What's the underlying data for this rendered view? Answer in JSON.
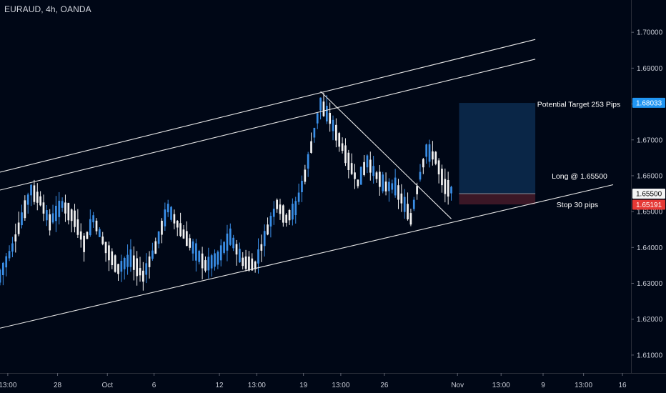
{
  "symbol_title": "EURAUD, 4h, OANDA",
  "colors": {
    "background": "#000716",
    "up_candle": "#3a8fe8",
    "down_candle": "#f2f2f2",
    "trendline": "#e6e6e6",
    "target_zone": "#0a2647",
    "stop_zone": "#3b1726",
    "axis_text": "#c8ccd6",
    "current_price_tag": "#2196f3",
    "stop_price_tag": "#e53935"
  },
  "chart_data": {
    "type": "candlestick",
    "title": "EURAUD, 4h, OANDA",
    "y_axis": {
      "position": "right",
      "ylim": [
        1.605,
        1.709
      ],
      "ticks": [
        "1.70000",
        "1.69000",
        "1.68000",
        "1.67000",
        "1.66000",
        "1.65000",
        "1.64000",
        "1.63000",
        "1.62000",
        "1.61000"
      ]
    },
    "x_axis": {
      "ticks": [
        "13:00",
        "28",
        "Oct",
        "6",
        "12",
        "13:00",
        "19",
        "13:00",
        "26",
        "Nov",
        "13:00",
        "9",
        "13:00",
        "16"
      ]
    },
    "grid": false,
    "price_tags": [
      {
        "label": "1.68033",
        "value": 1.68033,
        "color": "#2196f3"
      },
      {
        "label": "1.65500",
        "value": 1.655,
        "color": "#f5f5f5"
      },
      {
        "label": "1.65191",
        "value": 1.65191,
        "color": "#e53935"
      }
    ],
    "annotations": [
      {
        "text": "Potential Target 253 Pips",
        "value": 1.68
      },
      {
        "text": "Long @ 1.65500",
        "value": 1.66
      },
      {
        "text": "Stop 30 pips",
        "value": 1.652
      }
    ],
    "position_tool": {
      "entry": 1.655,
      "target": 1.6803,
      "stop": 1.652
    },
    "price_path_points": [
      {
        "x": 0,
        "y": 1.632
      },
      {
        "x": 4,
        "y": 1.64
      },
      {
        "x": 7,
        "y": 1.648
      },
      {
        "x": 10,
        "y": 1.656
      },
      {
        "x": 13,
        "y": 1.653
      },
      {
        "x": 16,
        "y": 1.647
      },
      {
        "x": 20,
        "y": 1.652
      },
      {
        "x": 24,
        "y": 1.648
      },
      {
        "x": 27,
        "y": 1.641
      },
      {
        "x": 30,
        "y": 1.648
      },
      {
        "x": 34,
        "y": 1.64
      },
      {
        "x": 38,
        "y": 1.634
      },
      {
        "x": 42,
        "y": 1.637
      },
      {
        "x": 46,
        "y": 1.632
      },
      {
        "x": 50,
        "y": 1.64
      },
      {
        "x": 54,
        "y": 1.651
      },
      {
        "x": 58,
        "y": 1.645
      },
      {
        "x": 62,
        "y": 1.64
      },
      {
        "x": 66,
        "y": 1.635
      },
      {
        "x": 70,
        "y": 1.637
      },
      {
        "x": 74,
        "y": 1.643
      },
      {
        "x": 78,
        "y": 1.636
      },
      {
        "x": 82,
        "y": 1.635
      },
      {
        "x": 86,
        "y": 1.645
      },
      {
        "x": 89,
        "y": 1.652
      },
      {
        "x": 92,
        "y": 1.648
      },
      {
        "x": 95,
        "y": 1.651
      },
      {
        "x": 98,
        "y": 1.66
      },
      {
        "x": 101,
        "y": 1.672
      },
      {
        "x": 103,
        "y": 1.68
      },
      {
        "x": 106,
        "y": 1.676
      },
      {
        "x": 109,
        "y": 1.67
      },
      {
        "x": 112,
        "y": 1.664
      },
      {
        "x": 115,
        "y": 1.658
      },
      {
        "x": 118,
        "y": 1.664
      },
      {
        "x": 121,
        "y": 1.66
      },
      {
        "x": 124,
        "y": 1.657
      },
      {
        "x": 127,
        "y": 1.657
      },
      {
        "x": 130,
        "y": 1.652
      },
      {
        "x": 132,
        "y": 1.648
      },
      {
        "x": 135,
        "y": 1.66
      },
      {
        "x": 137,
        "y": 1.667
      },
      {
        "x": 140,
        "y": 1.665
      },
      {
        "x": 143,
        "y": 1.657
      },
      {
        "x": 145,
        "y": 1.656
      }
    ],
    "trendlines": [
      {
        "name": "upper-channel-outer",
        "points": [
          {
            "x": 0,
            "y": 1.661
          },
          {
            "x": 172,
            "y": 1.698
          }
        ]
      },
      {
        "name": "upper-channel-inner",
        "points": [
          {
            "x": 0,
            "y": 1.656
          },
          {
            "x": 172,
            "y": 1.6925
          }
        ]
      },
      {
        "name": "lower-channel",
        "points": [
          {
            "x": 0,
            "y": 1.6175
          },
          {
            "x": 197,
            "y": 1.6575
          }
        ]
      },
      {
        "name": "descending-trendline",
        "points": [
          {
            "x": 103,
            "y": 1.6835
          },
          {
            "x": 145,
            "y": 1.648
          }
        ]
      }
    ]
  }
}
